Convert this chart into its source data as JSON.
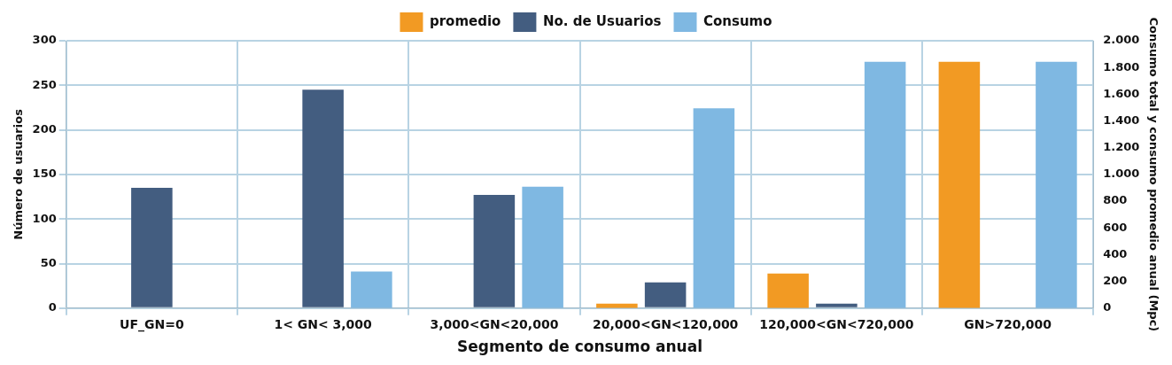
{
  "chart_data": {
    "type": "bar",
    "xlabel": "Segmento de consumo anual",
    "ylabel": "Número de usuarios",
    "y2label": "Consumo total y consumo promedio anual (Mpc)",
    "categories": [
      "UF_GN=0",
      "1< GN< 3,000",
      "3,000<GN<20,000",
      "20,000<GN<120,000",
      "120,000<GN<720,000",
      "GN>720,000"
    ],
    "series": [
      {
        "name": "promedio",
        "color": "#f29a23",
        "axis": "y2",
        "values": [
          null,
          null,
          null,
          34,
          259,
          1843
        ]
      },
      {
        "name": "No. de Usuarios",
        "color": "#435d80",
        "values": [
          135,
          245,
          127,
          29,
          5,
          null
        ]
      },
      {
        "name": "Consumo",
        "color": "#7fb8e2",
        "axis": "y2",
        "values": [
          null,
          273,
          908,
          1495,
          1843,
          1843
        ]
      }
    ],
    "ylim": [
      0,
      300
    ],
    "yticks": [
      0,
      50,
      100,
      150,
      200,
      250,
      300
    ],
    "y2lim": [
      0,
      2000
    ],
    "y2ticks": [
      {
        "value": 0,
        "label": "0"
      },
      {
        "value": 200,
        "label": "200"
      },
      {
        "value": 400,
        "label": "400"
      },
      {
        "value": 600,
        "label": "600"
      },
      {
        "value": 800,
        "label": "800"
      },
      {
        "value": 1000,
        "label": "1.000"
      },
      {
        "value": 1200,
        "label": "1.200"
      },
      {
        "value": 1400,
        "label": "1.400"
      },
      {
        "value": 1600,
        "label": "1.600"
      },
      {
        "value": 1800,
        "label": "1.800"
      },
      {
        "value": 2000,
        "label": "2.000"
      }
    ],
    "grid": true,
    "legend": "top"
  }
}
